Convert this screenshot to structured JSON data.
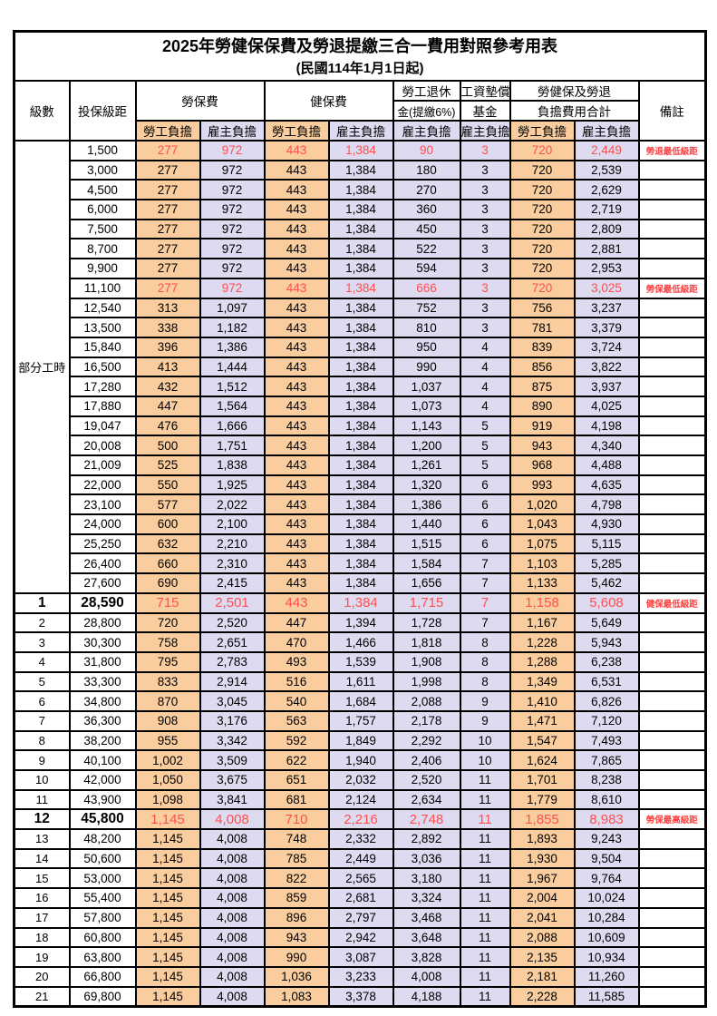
{
  "title": "2025年勞健保保費及勞退提繳三合一費用對照參考用表",
  "subtitle": "(民國114年1月1日起)",
  "colors": {
    "worker_column_bg": "#FACD9E",
    "employer_column_bg": "#DEDAF0",
    "highlight_value_red": "#FF5050",
    "remark_red": "#FF4040",
    "border_black": "#000000"
  },
  "header": {
    "level": "級數",
    "bracket": "投保級距",
    "labor_insurance": "勞保費",
    "health_insurance": "健保費",
    "pension_line1": "勞工退休",
    "pension_line2": "金(提繳6%)",
    "wage_fund_line1": "工資墊償",
    "wage_fund_line2": "基金",
    "total_line1": "勞健保及勞退",
    "total_line2": "負擔費用合計",
    "remark": "備註",
    "worker_share": "勞工負擔",
    "employer_share": "雇主負擔"
  },
  "part_time_label": "部分工時",
  "part_time_rowspan": 23,
  "rows": [
    {
      "level": null,
      "bracket": "1,500",
      "values": [
        "277",
        "972",
        "443",
        "1,384",
        "90",
        "3",
        "720",
        "2,449"
      ],
      "remark": "勞退最低級距",
      "style": "red"
    },
    {
      "level": null,
      "bracket": "3,000",
      "values": [
        "277",
        "972",
        "443",
        "1,384",
        "180",
        "3",
        "720",
        "2,539"
      ],
      "remark": "",
      "style": ""
    },
    {
      "level": null,
      "bracket": "4,500",
      "values": [
        "277",
        "972",
        "443",
        "1,384",
        "270",
        "3",
        "720",
        "2,629"
      ],
      "remark": "",
      "style": ""
    },
    {
      "level": null,
      "bracket": "6,000",
      "values": [
        "277",
        "972",
        "443",
        "1,384",
        "360",
        "3",
        "720",
        "2,719"
      ],
      "remark": "",
      "style": ""
    },
    {
      "level": null,
      "bracket": "7,500",
      "values": [
        "277",
        "972",
        "443",
        "1,384",
        "450",
        "3",
        "720",
        "2,809"
      ],
      "remark": "",
      "style": ""
    },
    {
      "level": null,
      "bracket": "8,700",
      "values": [
        "277",
        "972",
        "443",
        "1,384",
        "522",
        "3",
        "720",
        "2,881"
      ],
      "remark": "",
      "style": ""
    },
    {
      "level": null,
      "bracket": "9,900",
      "values": [
        "277",
        "972",
        "443",
        "1,384",
        "594",
        "3",
        "720",
        "2,953"
      ],
      "remark": "",
      "style": ""
    },
    {
      "level": null,
      "bracket": "11,100",
      "values": [
        "277",
        "972",
        "443",
        "1,384",
        "666",
        "3",
        "720",
        "3,025"
      ],
      "remark": "勞保最低級距",
      "style": "red"
    },
    {
      "level": null,
      "bracket": "12,540",
      "values": [
        "313",
        "1,097",
        "443",
        "1,384",
        "752",
        "3",
        "756",
        "3,237"
      ],
      "remark": "",
      "style": ""
    },
    {
      "level": null,
      "bracket": "13,500",
      "values": [
        "338",
        "1,182",
        "443",
        "1,384",
        "810",
        "3",
        "781",
        "3,379"
      ],
      "remark": "",
      "style": ""
    },
    {
      "level": null,
      "bracket": "15,840",
      "values": [
        "396",
        "1,386",
        "443",
        "1,384",
        "950",
        "4",
        "839",
        "3,724"
      ],
      "remark": "",
      "style": ""
    },
    {
      "level": null,
      "bracket": "16,500",
      "values": [
        "413",
        "1,444",
        "443",
        "1,384",
        "990",
        "4",
        "856",
        "3,822"
      ],
      "remark": "",
      "style": ""
    },
    {
      "level": null,
      "bracket": "17,280",
      "values": [
        "432",
        "1,512",
        "443",
        "1,384",
        "1,037",
        "4",
        "875",
        "3,937"
      ],
      "remark": "",
      "style": ""
    },
    {
      "level": null,
      "bracket": "17,880",
      "values": [
        "447",
        "1,564",
        "443",
        "1,384",
        "1,073",
        "4",
        "890",
        "4,025"
      ],
      "remark": "",
      "style": ""
    },
    {
      "level": null,
      "bracket": "19,047",
      "values": [
        "476",
        "1,666",
        "443",
        "1,384",
        "1,143",
        "5",
        "919",
        "4,198"
      ],
      "remark": "",
      "style": ""
    },
    {
      "level": null,
      "bracket": "20,008",
      "values": [
        "500",
        "1,751",
        "443",
        "1,384",
        "1,200",
        "5",
        "943",
        "4,340"
      ],
      "remark": "",
      "style": ""
    },
    {
      "level": null,
      "bracket": "21,009",
      "values": [
        "525",
        "1,838",
        "443",
        "1,384",
        "1,261",
        "5",
        "968",
        "4,488"
      ],
      "remark": "",
      "style": ""
    },
    {
      "level": null,
      "bracket": "22,000",
      "values": [
        "550",
        "1,925",
        "443",
        "1,384",
        "1,320",
        "6",
        "993",
        "4,635"
      ],
      "remark": "",
      "style": ""
    },
    {
      "level": null,
      "bracket": "23,100",
      "values": [
        "577",
        "2,022",
        "443",
        "1,384",
        "1,386",
        "6",
        "1,020",
        "4,798"
      ],
      "remark": "",
      "style": ""
    },
    {
      "level": null,
      "bracket": "24,000",
      "values": [
        "600",
        "2,100",
        "443",
        "1,384",
        "1,440",
        "6",
        "1,043",
        "4,930"
      ],
      "remark": "",
      "style": ""
    },
    {
      "level": null,
      "bracket": "25,250",
      "values": [
        "632",
        "2,210",
        "443",
        "1,384",
        "1,515",
        "6",
        "1,075",
        "5,115"
      ],
      "remark": "",
      "style": ""
    },
    {
      "level": null,
      "bracket": "26,400",
      "values": [
        "660",
        "2,310",
        "443",
        "1,384",
        "1,584",
        "7",
        "1,103",
        "5,285"
      ],
      "remark": "",
      "style": ""
    },
    {
      "level": null,
      "bracket": "27,600",
      "values": [
        "690",
        "2,415",
        "443",
        "1,384",
        "1,656",
        "7",
        "1,133",
        "5,462"
      ],
      "remark": "",
      "style": ""
    },
    {
      "level": "1",
      "bracket": "28,590",
      "values": [
        "715",
        "2,501",
        "443",
        "1,384",
        "1,715",
        "7",
        "1,158",
        "5,608"
      ],
      "remark": "健保最低級距",
      "style": "redbold"
    },
    {
      "level": "2",
      "bracket": "28,800",
      "values": [
        "720",
        "2,520",
        "447",
        "1,394",
        "1,728",
        "7",
        "1,167",
        "5,649"
      ],
      "remark": "",
      "style": ""
    },
    {
      "level": "3",
      "bracket": "30,300",
      "values": [
        "758",
        "2,651",
        "470",
        "1,466",
        "1,818",
        "8",
        "1,228",
        "5,943"
      ],
      "remark": "",
      "style": ""
    },
    {
      "level": "4",
      "bracket": "31,800",
      "values": [
        "795",
        "2,783",
        "493",
        "1,539",
        "1,908",
        "8",
        "1,288",
        "6,238"
      ],
      "remark": "",
      "style": ""
    },
    {
      "level": "5",
      "bracket": "33,300",
      "values": [
        "833",
        "2,914",
        "516",
        "1,611",
        "1,998",
        "8",
        "1,349",
        "6,531"
      ],
      "remark": "",
      "style": ""
    },
    {
      "level": "6",
      "bracket": "34,800",
      "values": [
        "870",
        "3,045",
        "540",
        "1,684",
        "2,088",
        "9",
        "1,410",
        "6,826"
      ],
      "remark": "",
      "style": ""
    },
    {
      "level": "7",
      "bracket": "36,300",
      "values": [
        "908",
        "3,176",
        "563",
        "1,757",
        "2,178",
        "9",
        "1,471",
        "7,120"
      ],
      "remark": "",
      "style": ""
    },
    {
      "level": "8",
      "bracket": "38,200",
      "values": [
        "955",
        "3,342",
        "592",
        "1,849",
        "2,292",
        "10",
        "1,547",
        "7,493"
      ],
      "remark": "",
      "style": ""
    },
    {
      "level": "9",
      "bracket": "40,100",
      "values": [
        "1,002",
        "3,509",
        "622",
        "1,940",
        "2,406",
        "10",
        "1,624",
        "7,865"
      ],
      "remark": "",
      "style": ""
    },
    {
      "level": "10",
      "bracket": "42,000",
      "values": [
        "1,050",
        "3,675",
        "651",
        "2,032",
        "2,520",
        "11",
        "1,701",
        "8,238"
      ],
      "remark": "",
      "style": ""
    },
    {
      "level": "11",
      "bracket": "43,900",
      "values": [
        "1,098",
        "3,841",
        "681",
        "2,124",
        "2,634",
        "11",
        "1,779",
        "8,610"
      ],
      "remark": "",
      "style": ""
    },
    {
      "level": "12",
      "bracket": "45,800",
      "values": [
        "1,145",
        "4,008",
        "710",
        "2,216",
        "2,748",
        "11",
        "1,855",
        "8,983"
      ],
      "remark": "勞保最高級距",
      "style": "redbold"
    },
    {
      "level": "13",
      "bracket": "48,200",
      "values": [
        "1,145",
        "4,008",
        "748",
        "2,332",
        "2,892",
        "11",
        "1,893",
        "9,243"
      ],
      "remark": "",
      "style": ""
    },
    {
      "level": "14",
      "bracket": "50,600",
      "values": [
        "1,145",
        "4,008",
        "785",
        "2,449",
        "3,036",
        "11",
        "1,930",
        "9,504"
      ],
      "remark": "",
      "style": ""
    },
    {
      "level": "15",
      "bracket": "53,000",
      "values": [
        "1,145",
        "4,008",
        "822",
        "2,565",
        "3,180",
        "11",
        "1,967",
        "9,764"
      ],
      "remark": "",
      "style": ""
    },
    {
      "level": "16",
      "bracket": "55,400",
      "values": [
        "1,145",
        "4,008",
        "859",
        "2,681",
        "3,324",
        "11",
        "2,004",
        "10,024"
      ],
      "remark": "",
      "style": ""
    },
    {
      "level": "17",
      "bracket": "57,800",
      "values": [
        "1,145",
        "4,008",
        "896",
        "2,797",
        "3,468",
        "11",
        "2,041",
        "10,284"
      ],
      "remark": "",
      "style": ""
    },
    {
      "level": "18",
      "bracket": "60,800",
      "values": [
        "1,145",
        "4,008",
        "943",
        "2,942",
        "3,648",
        "11",
        "2,088",
        "10,609"
      ],
      "remark": "",
      "style": ""
    },
    {
      "level": "19",
      "bracket": "63,800",
      "values": [
        "1,145",
        "4,008",
        "990",
        "3,087",
        "3,828",
        "11",
        "2,135",
        "10,934"
      ],
      "remark": "",
      "style": ""
    },
    {
      "level": "20",
      "bracket": "66,800",
      "values": [
        "1,145",
        "4,008",
        "1,036",
        "3,233",
        "4,008",
        "11",
        "2,181",
        "11,260"
      ],
      "remark": "",
      "style": ""
    },
    {
      "level": "21",
      "bracket": "69,800",
      "values": [
        "1,145",
        "4,008",
        "1,083",
        "3,378",
        "4,188",
        "11",
        "2,228",
        "11,585"
      ],
      "remark": "",
      "style": ""
    }
  ]
}
